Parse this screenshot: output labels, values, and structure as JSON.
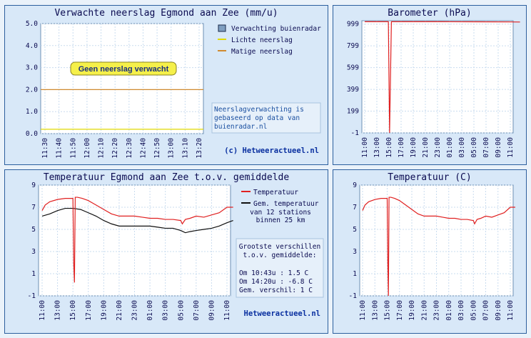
{
  "panels": {
    "rain": {
      "title": "Verwachte neerslag Egmond aan Zee (mm/u)",
      "badge": "Geen neerslag verwacht",
      "legend": [
        {
          "label": "Verwachting buienradar",
          "color": "#7f9fc0",
          "kind": "box"
        },
        {
          "label": "Lichte neerslag",
          "color": "#e0d800",
          "kind": "line"
        },
        {
          "label": "Matige neerslag",
          "color": "#d08a30",
          "kind": "line"
        }
      ],
      "note": [
        "Neerslagverwachting is",
        "gebaseerd op data van",
        "buienradar.nl"
      ],
      "credit": "(c) Hetweeractueel.nl"
    },
    "baro": {
      "title": "Barometer (hPa)"
    },
    "tempcmp": {
      "title": "Temperatuur Egmond aan Zee t.o.v. gemiddelde",
      "legend": [
        {
          "label": "Temperatuur",
          "color": "#e02020"
        },
        {
          "label": "Gem. temperatuur",
          "color": "#101010"
        }
      ],
      "legend_sub": [
        "van 12 stations",
        "binnen 25 km"
      ],
      "diff_title": [
        "Grootste verschillen",
        "t.o.v. gemiddelde:"
      ],
      "diff_lines": [
        "Om 10:43u : 1.5 C",
        "Om 14:20u : -6.8 C",
        "Gem. verschil: 1 C"
      ],
      "credit": "Hetweeractueel.nl"
    },
    "temp": {
      "title": "Temperatuur (C)"
    }
  },
  "chart_data": [
    {
      "type": "line",
      "title": "Verwachte neerslag Egmond aan Zee (mm/u)",
      "categories": [
        "11:30",
        "11:40",
        "11:50",
        "12:00",
        "12:10",
        "12:20",
        "12:30",
        "12:40",
        "12:50",
        "13:00",
        "13:10",
        "13:20"
      ],
      "yticks": [
        "0.0",
        "1.0",
        "2.0",
        "3.0",
        "4.0",
        "5.0"
      ],
      "ylim": [
        0,
        5
      ],
      "threshold_lines": [
        {
          "name": "Lichte neerslag",
          "value": 0.2,
          "color": "#e0d800"
        },
        {
          "name": "Matige neerslag",
          "value": 2.0,
          "color": "#d08a30"
        }
      ],
      "series": [
        {
          "name": "Verwachting buienradar",
          "values": [
            0,
            0,
            0,
            0,
            0,
            0,
            0,
            0,
            0,
            0,
            0,
            0
          ]
        }
      ]
    },
    {
      "type": "line",
      "title": "Barometer (hPa)",
      "categories": [
        "11:00",
        "13:00",
        "15:00",
        "17:00",
        "19:00",
        "21:00",
        "23:00",
        "01:00",
        "03:00",
        "05:00",
        "07:00",
        "09:00",
        "11:00"
      ],
      "yticks": [
        "-1",
        "199",
        "399",
        "599",
        "799",
        "999"
      ],
      "ylim": [
        -1,
        1030
      ],
      "series": [
        {
          "name": "Barometer",
          "color": "#e02020",
          "x": [
            0,
            1.9,
            1.95,
            2.05,
            2.2,
            2.3,
            3,
            6,
            9,
            12,
            12.8
          ],
          "y": [
            1021,
            1021,
            1021,
            -1,
            1021,
            1021,
            1021,
            1021,
            1020,
            1019,
            1018
          ]
        }
      ]
    },
    {
      "type": "line",
      "title": "Temperatuur Egmond aan Zee t.o.v. gemiddelde",
      "categories": [
        "11:00",
        "13:00",
        "15:00",
        "17:00",
        "19:00",
        "21:00",
        "23:00",
        "01:00",
        "03:00",
        "05:00",
        "07:00",
        "09:00",
        "11:00"
      ],
      "yticks": [
        "-1",
        "1",
        "3",
        "5",
        "7",
        "9"
      ],
      "ylim": [
        -1,
        9
      ],
      "series": [
        {
          "name": "Temperatuur",
          "color": "#e02020",
          "x": [
            0,
            0.2,
            0.5,
            1,
            1.5,
            2.0,
            2.05,
            2.1,
            2.15,
            2.2,
            2.3,
            2.6,
            3.0,
            3.5,
            4,
            4.5,
            5,
            5.5,
            6,
            6.5,
            7,
            7.5,
            8,
            8.5,
            9,
            9.1,
            9.3,
            9.6,
            10,
            10.5,
            11,
            11.5,
            12,
            12.4
          ],
          "y": [
            6.7,
            7.2,
            7.5,
            7.7,
            7.8,
            7.8,
            2.0,
            0.2,
            7.9,
            7.9,
            7.9,
            7.8,
            7.6,
            7.2,
            6.8,
            6.4,
            6.2,
            6.2,
            6.2,
            6.1,
            6.0,
            6.0,
            5.9,
            5.9,
            5.8,
            5.5,
            5.9,
            6.0,
            6.2,
            6.1,
            6.3,
            6.5,
            7.0,
            7.0
          ]
        },
        {
          "name": "Gem. temperatuur",
          "color": "#101010",
          "x": [
            0,
            0.5,
            1,
            1.5,
            2,
            2.5,
            3,
            3.5,
            4,
            4.5,
            5,
            5.5,
            6,
            6.5,
            7,
            7.5,
            8,
            8.5,
            9,
            9.3,
            9.6,
            10,
            10.5,
            11,
            11.5,
            12,
            12.4
          ],
          "y": [
            6.2,
            6.4,
            6.7,
            6.9,
            6.9,
            6.8,
            6.5,
            6.2,
            5.8,
            5.5,
            5.3,
            5.3,
            5.3,
            5.3,
            5.3,
            5.2,
            5.1,
            5.1,
            4.9,
            4.7,
            4.8,
            4.9,
            5.0,
            5.1,
            5.3,
            5.6,
            5.8
          ]
        }
      ]
    },
    {
      "type": "line",
      "title": "Temperatuur (C)",
      "categories": [
        "11:00",
        "13:00",
        "15:00",
        "17:00",
        "19:00",
        "21:00",
        "23:00",
        "01:00",
        "03:00",
        "05:00",
        "07:00",
        "09:00",
        "11:00"
      ],
      "yticks": [
        "-1",
        "1",
        "3",
        "5",
        "7",
        "9"
      ],
      "ylim": [
        -1,
        9
      ],
      "series": [
        {
          "name": "Temperatuur",
          "color": "#e02020",
          "x": [
            0,
            0.2,
            0.5,
            1,
            1.5,
            2.0,
            2.05,
            2.1,
            2.15,
            2.2,
            2.3,
            2.6,
            3.0,
            3.5,
            4,
            4.5,
            5,
            5.5,
            6,
            6.5,
            7,
            7.5,
            8,
            8.5,
            9,
            9.1,
            9.3,
            9.6,
            10,
            10.5,
            11,
            11.5,
            12,
            12.4
          ],
          "y": [
            6.7,
            7.2,
            7.5,
            7.7,
            7.8,
            7.8,
            2.0,
            -1,
            7.9,
            7.9,
            7.9,
            7.8,
            7.6,
            7.2,
            6.8,
            6.4,
            6.2,
            6.2,
            6.2,
            6.1,
            6.0,
            6.0,
            5.9,
            5.9,
            5.8,
            5.5,
            5.9,
            6.0,
            6.2,
            6.1,
            6.3,
            6.5,
            7.0,
            7.0
          ]
        }
      ]
    }
  ]
}
